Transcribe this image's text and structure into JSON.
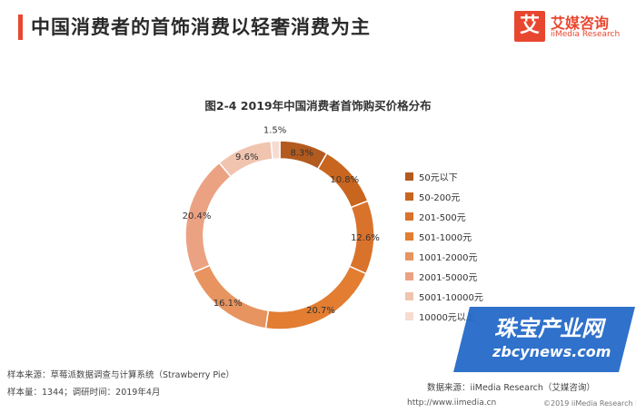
{
  "header": {
    "headline": "中国消费者的首饰消费以轻奢消费为主",
    "accent_color": "#e8472f"
  },
  "brand": {
    "icon_char": "艾",
    "name_cn": "艾媒咨询",
    "name_en": "iiMedia Research"
  },
  "chart_data": {
    "type": "pie",
    "variant": "donut",
    "title": "图2-4 2019年中国消费者首饰购买价格分布",
    "categories": [
      "50元以下",
      "50-200元",
      "201-500元",
      "501-1000元",
      "1001-2000元",
      "2001-5000元",
      "5001-10000元",
      "10000元以上"
    ],
    "values": [
      8.3,
      10.8,
      12.6,
      20.7,
      16.1,
      20.4,
      9.6,
      1.5
    ],
    "labels": [
      "8.3%",
      "10.8%",
      "12.6%",
      "20.7%",
      "16.1%",
      "20.4%",
      "9.6%",
      "1.5%"
    ],
    "colors": [
      "#b35a1f",
      "#c8661f",
      "#d9722b",
      "#e27d31",
      "#e79460",
      "#eba283",
      "#f0c4af",
      "#f6dbd0"
    ],
    "legend_position": "right"
  },
  "footer": {
    "sample_source": "样本来源：草莓派数据调查与计算系统（Strawberry Pie）",
    "sample_size": "样本量：1344；调研时间：2019年4月",
    "data_source": "数据来源：iiMedia Research（艾媒咨询）",
    "url": "http://www.iimedia.cn",
    "copyright": "©2019  iiMedia Research  Inc"
  },
  "watermark": {
    "name_cn": "珠宝产业网",
    "domain": "zbcynews.com"
  }
}
